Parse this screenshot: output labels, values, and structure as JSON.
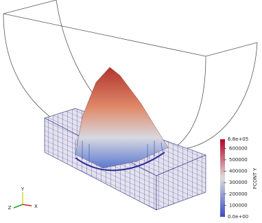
{
  "color_bar": {
    "title": "FCONT Y",
    "min": {
      "value": 0,
      "label": "0.0e+00"
    },
    "max": {
      "value": 680000,
      "label": "6.8e+05"
    },
    "ticks": [
      100000,
      200000,
      300000,
      400000,
      500000,
      600000
    ]
  },
  "axes_triad": {
    "x": "X",
    "y": "Y",
    "z": "Z"
  }
}
